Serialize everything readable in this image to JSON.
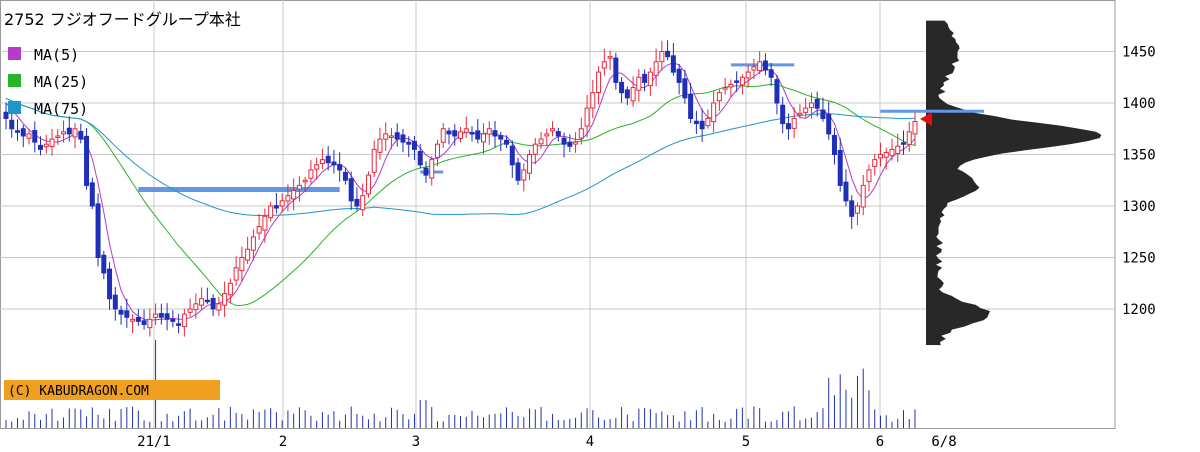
{
  "title": "2752 フジオフードグループ本社",
  "copyright": "(C) KABUDRAGON.COM",
  "colors": {
    "up": "#e8283a",
    "down": "#1f2fb8",
    "ma5": "#b43cc8",
    "ma25": "#28b428",
    "ma75": "#1e96c8",
    "grid": "#c8c8c8",
    "resistance": "#6496e6",
    "volume": "#2030b0",
    "profile": "#282828",
    "marker": "#e01010"
  },
  "chart_data": {
    "type": "candlestick",
    "title": "2752 フジオフードグループ本社",
    "ylim": [
      1130,
      1500
    ],
    "y_ticks": [
      1200,
      1250,
      1300,
      1350,
      1400,
      1450
    ],
    "x_tick_labels": [
      "21/1",
      "2",
      "3",
      "4",
      "5",
      "6",
      "6/8"
    ],
    "legend": [
      {
        "name": "MA(5)",
        "color": "#b43cc8"
      },
      {
        "name": "MA(25)",
        "color": "#28b428"
      },
      {
        "name": "MA(75)",
        "color": "#1e96c8"
      }
    ],
    "closes": [
      1385,
      1375,
      1372,
      1368,
      1370,
      1362,
      1355,
      1360,
      1365,
      1368,
      1372,
      1370,
      1375,
      1365,
      1320,
      1300,
      1250,
      1235,
      1210,
      1200,
      1195,
      1192,
      1190,
      1188,
      1185,
      1190,
      1195,
      1192,
      1190,
      1188,
      1185,
      1195,
      1200,
      1205,
      1210,
      1208,
      1200,
      1205,
      1215,
      1225,
      1240,
      1250,
      1258,
      1270,
      1280,
      1290,
      1300,
      1298,
      1305,
      1310,
      1315,
      1320,
      1325,
      1335,
      1340,
      1345,
      1342,
      1340,
      1335,
      1325,
      1305,
      1300,
      1310,
      1330,
      1355,
      1365,
      1370,
      1368,
      1365,
      1362,
      1360,
      1355,
      1340,
      1330,
      1345,
      1360,
      1375,
      1370,
      1368,
      1372,
      1375,
      1370,
      1365,
      1370,
      1375,
      1368,
      1365,
      1360,
      1340,
      1325,
      1335,
      1350,
      1360,
      1365,
      1370,
      1375,
      1368,
      1360,
      1358,
      1362,
      1375,
      1395,
      1410,
      1430,
      1440,
      1445,
      1420,
      1410,
      1405,
      1415,
      1425,
      1420,
      1430,
      1440,
      1450,
      1445,
      1430,
      1420,
      1405,
      1385,
      1380,
      1375,
      1385,
      1400,
      1410,
      1415,
      1418,
      1420,
      1425,
      1430,
      1435,
      1440,
      1432,
      1425,
      1400,
      1380,
      1375,
      1385,
      1390,
      1395,
      1400,
      1395,
      1385,
      1370,
      1350,
      1320,
      1305,
      1290,
      1300,
      1320,
      1335,
      1345,
      1350,
      1352,
      1355,
      1358,
      1360,
      1372,
      1382
    ],
    "volume_spikes": "volume bars shown along bottom; peak near 21/1",
    "resistance_levels": [
      {
        "from": 23,
        "to": 58,
        "price": 1316
      },
      {
        "from": 72,
        "to": 76,
        "price": 1333
      },
      {
        "from": 126,
        "to": 137,
        "price": 1437
      },
      {
        "from": 152,
        "to": 170,
        "price": 1392
      }
    ],
    "current_price_marker": 1383
  }
}
